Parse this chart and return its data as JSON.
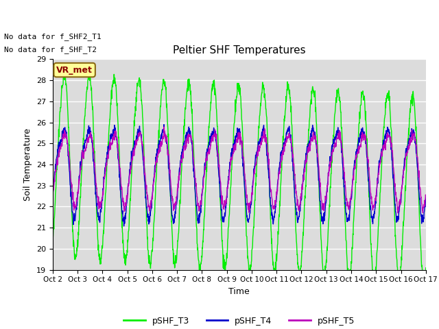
{
  "title": "Peltier SHF Temperatures",
  "xlabel": "Time",
  "ylabel": "Soil Temperature",
  "ylim": [
    19.0,
    29.0
  ],
  "yticks": [
    19.0,
    20.0,
    21.0,
    22.0,
    23.0,
    24.0,
    25.0,
    26.0,
    27.0,
    28.0,
    29.0
  ],
  "xtick_labels": [
    "Oct 2",
    "Oct 3",
    "Oct 4",
    "Oct 5",
    "Oct 6",
    "Oct 7",
    "Oct 8",
    "Oct 9",
    "Oct 10",
    "Oct 11",
    "Oct 12",
    "Oct 13",
    "Oct 14",
    "Oct 15",
    "Oct 16",
    "Oct 17"
  ],
  "annotation_text1": "No data for f_SHF2_T1",
  "annotation_text2": "No data for f_SHF_T2",
  "vr_met_label": "VR_met",
  "color_T3": "#00EE00",
  "color_T4": "#0000CC",
  "color_T5": "#BB00BB",
  "legend_labels": [
    "pSHF_T3",
    "pSHF_T4",
    "pSHF_T5"
  ],
  "background_color": "#DCDCDC",
  "n_points": 1500,
  "days": 15,
  "T3_amplitude": 4.3,
  "T3_mean": 23.8,
  "T4_amplitude": 2.0,
  "T4_mean": 23.8,
  "T5_amplitude": 1.6,
  "T5_mean": 23.9,
  "phase_T3": -1.2,
  "phase_T4": -0.9,
  "phase_T5": -1.1
}
